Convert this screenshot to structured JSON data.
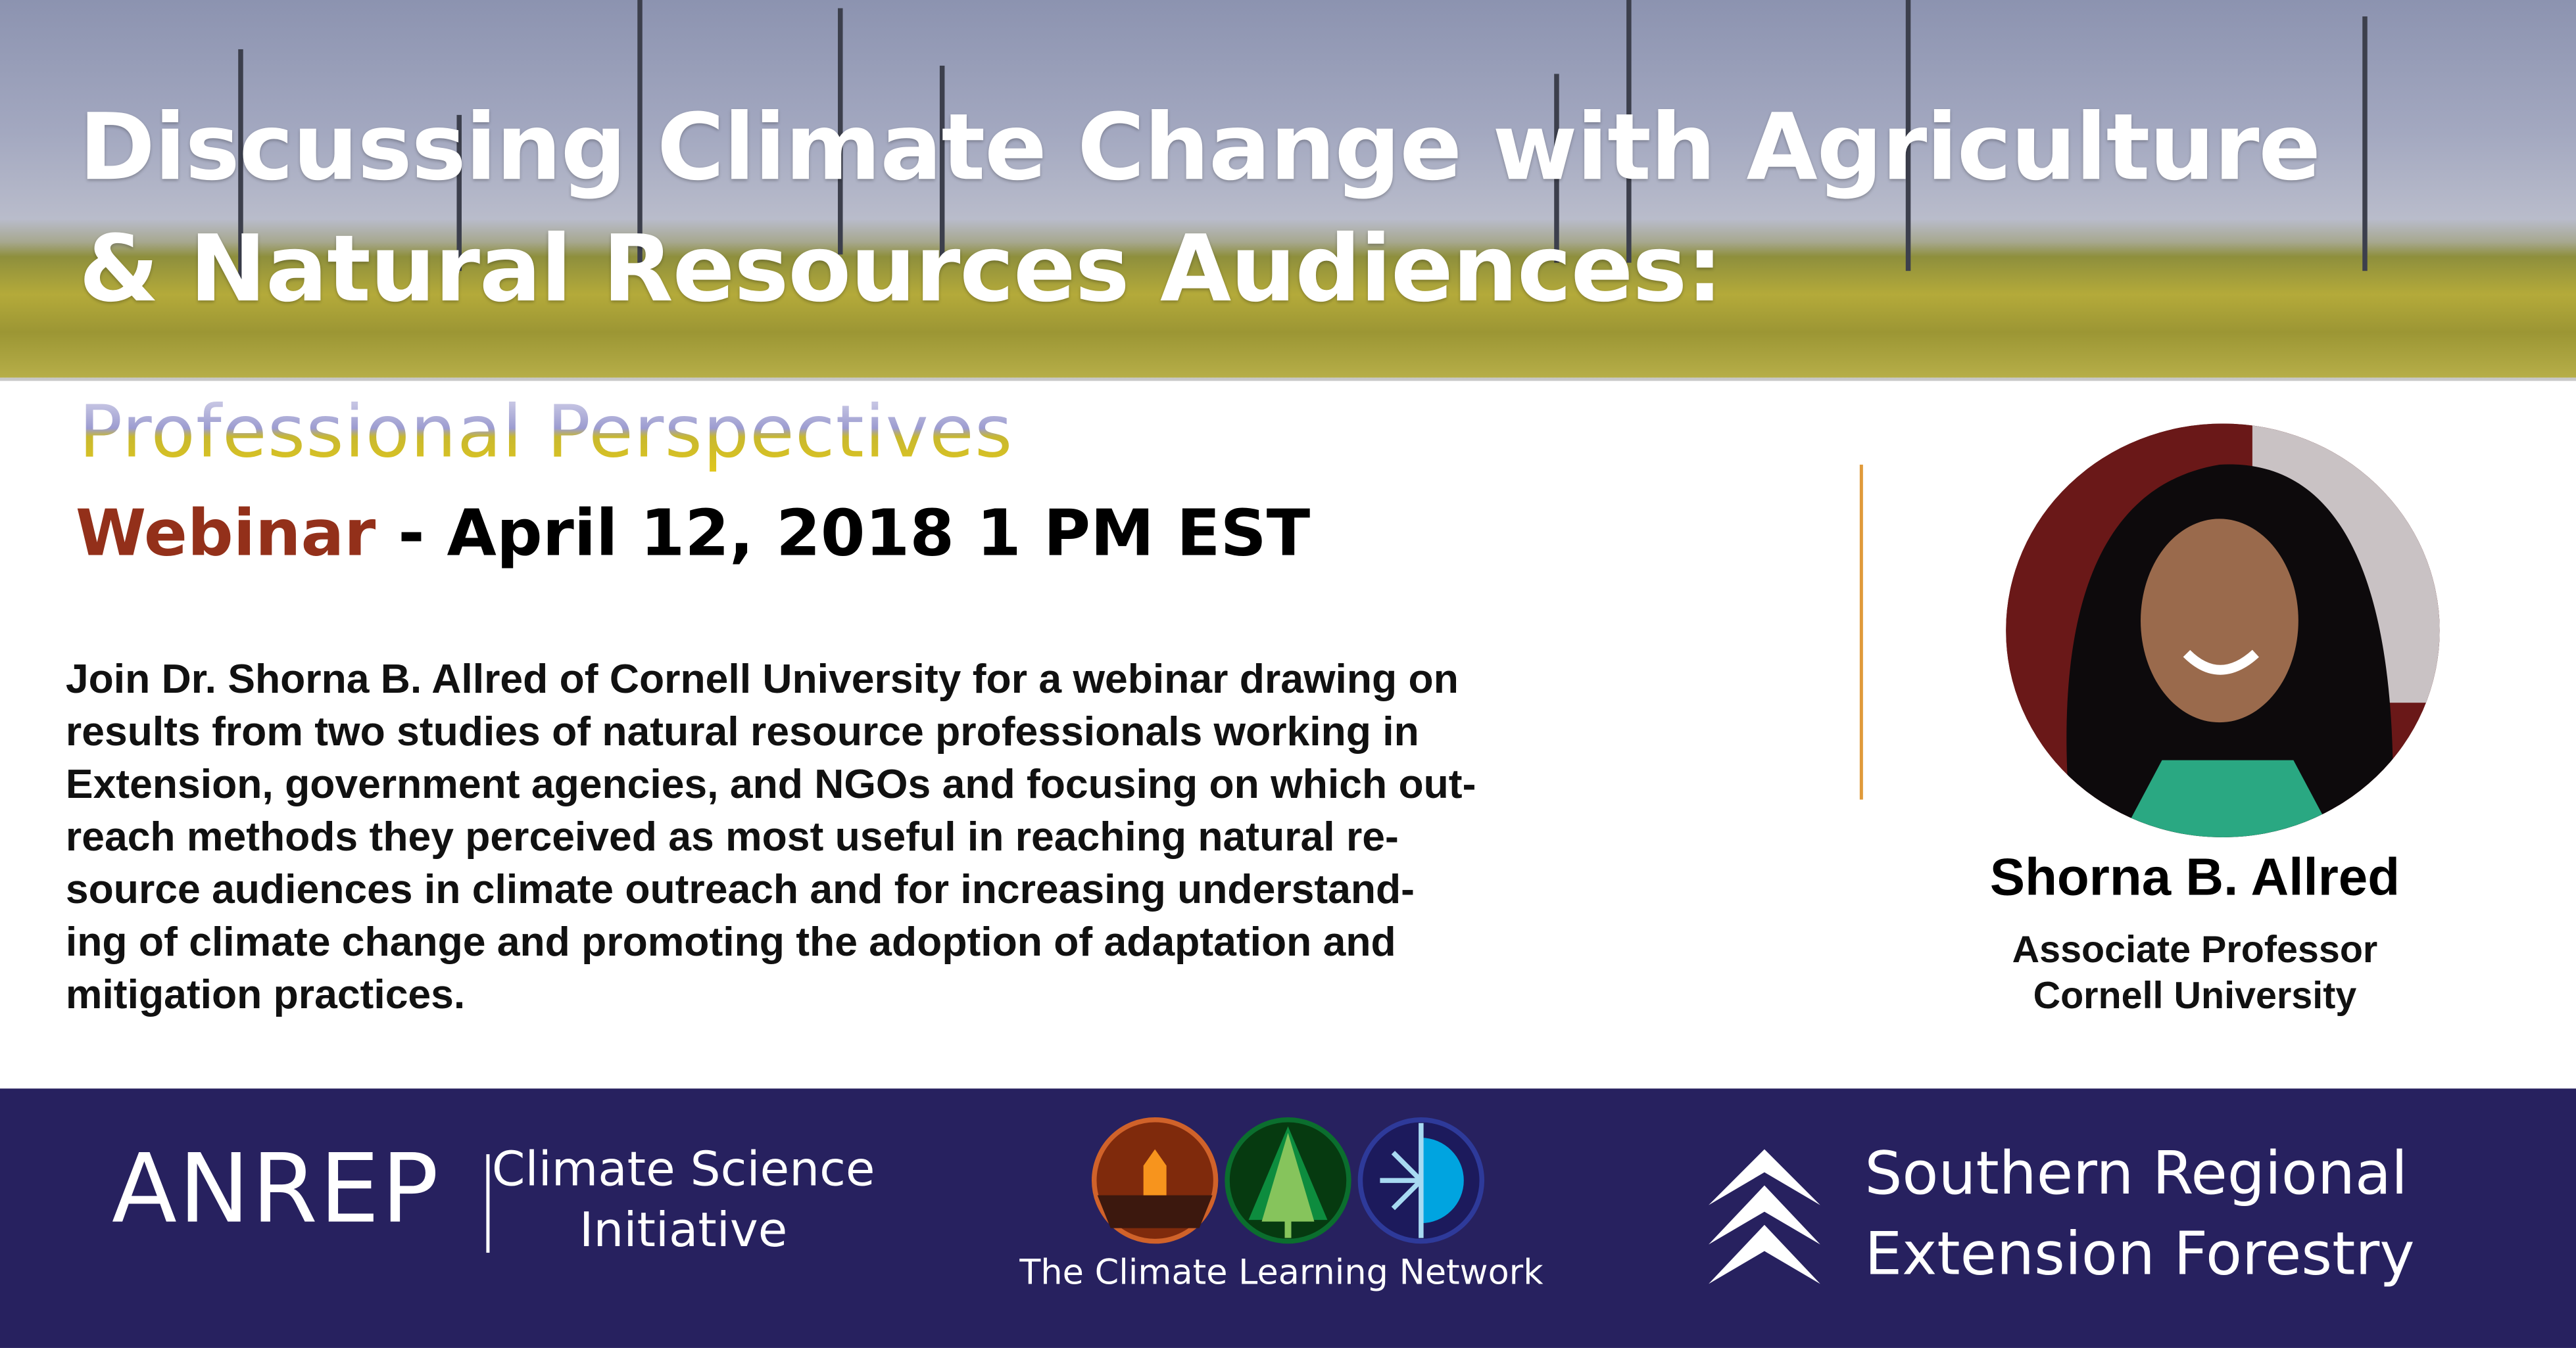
{
  "header": {
    "title_line1": "Discussing Climate Change with Agriculture",
    "title_line2": "& Natural Resources Audiences:",
    "subtitle": "Professional Perspectives"
  },
  "event": {
    "type": "Webinar",
    "date_text": " - April 12, 2018 1 PM EST"
  },
  "description": [
    "Join Dr. Shorna B. Allred of Cornell University for a webinar drawing on",
    "results from two studies of natural resource professionals working in",
    "Extension, government agencies, and NGOs and focusing on which out-",
    "reach methods they perceived as most useful in reaching natural re-",
    "source audiences in climate outreach and  for increasing understand-",
    "ing of climate change and promoting the adoption of adaptation and",
    "mitigation practices."
  ],
  "speaker": {
    "name": "Shorna B. Allred",
    "title": "Associate Professor",
    "affiliation": "Cornell University"
  },
  "footer": {
    "anrep": "ANREP",
    "csi_line1": "Climate Science",
    "csi_line2": "Initiative",
    "cln_caption": "The Climate Learning Network",
    "sref_line1": "Southern Regional",
    "sref_line2": "Extension Forestry"
  },
  "colors": {
    "footer_bg": "#27215f",
    "webinar_accent": "#93301a",
    "divider": "#e09a3a"
  }
}
